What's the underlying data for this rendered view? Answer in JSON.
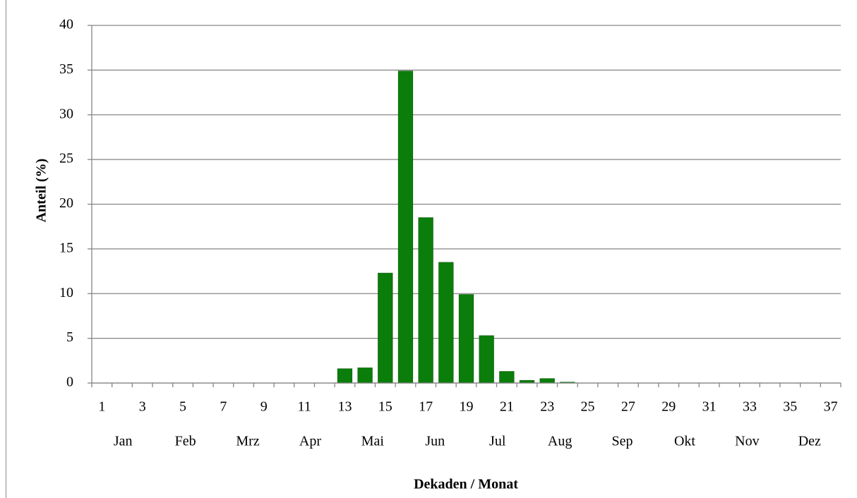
{
  "chart_data": {
    "type": "bar",
    "categories": [
      "1",
      null,
      "3",
      null,
      "5",
      null,
      "7",
      null,
      "9",
      null,
      "11",
      null,
      "13",
      null,
      "15",
      null,
      "17",
      null,
      "19",
      null,
      "21",
      null,
      "23",
      null,
      "25",
      null,
      "27",
      null,
      "29",
      null,
      "31",
      null,
      "33",
      null,
      "35",
      null,
      "37"
    ],
    "values": [
      0,
      0,
      0,
      0,
      0,
      0,
      0,
      0,
      0,
      0,
      0,
      0,
      1.6,
      1.7,
      12.3,
      34.9,
      18.5,
      13.5,
      9.9,
      5.3,
      1.3,
      0.3,
      0.5,
      0.1,
      0,
      0,
      0,
      0,
      0,
      0,
      0,
      0,
      0,
      0,
      0,
      0,
      0
    ],
    "months": [
      "Jan",
      "Feb",
      "Mrz",
      "Apr",
      "Mai",
      "Jun",
      "Jul",
      "Aug",
      "Sep",
      "Okt",
      "Nov",
      "Dez"
    ],
    "color": "#0a7d0a",
    "ylabel": "Anteil (%)",
    "xlabel": "Dekaden / Monat",
    "ylim": [
      0,
      40
    ],
    "yticks": [
      0,
      5,
      10,
      15,
      20,
      25,
      30,
      35,
      40
    ],
    "grid": true
  }
}
